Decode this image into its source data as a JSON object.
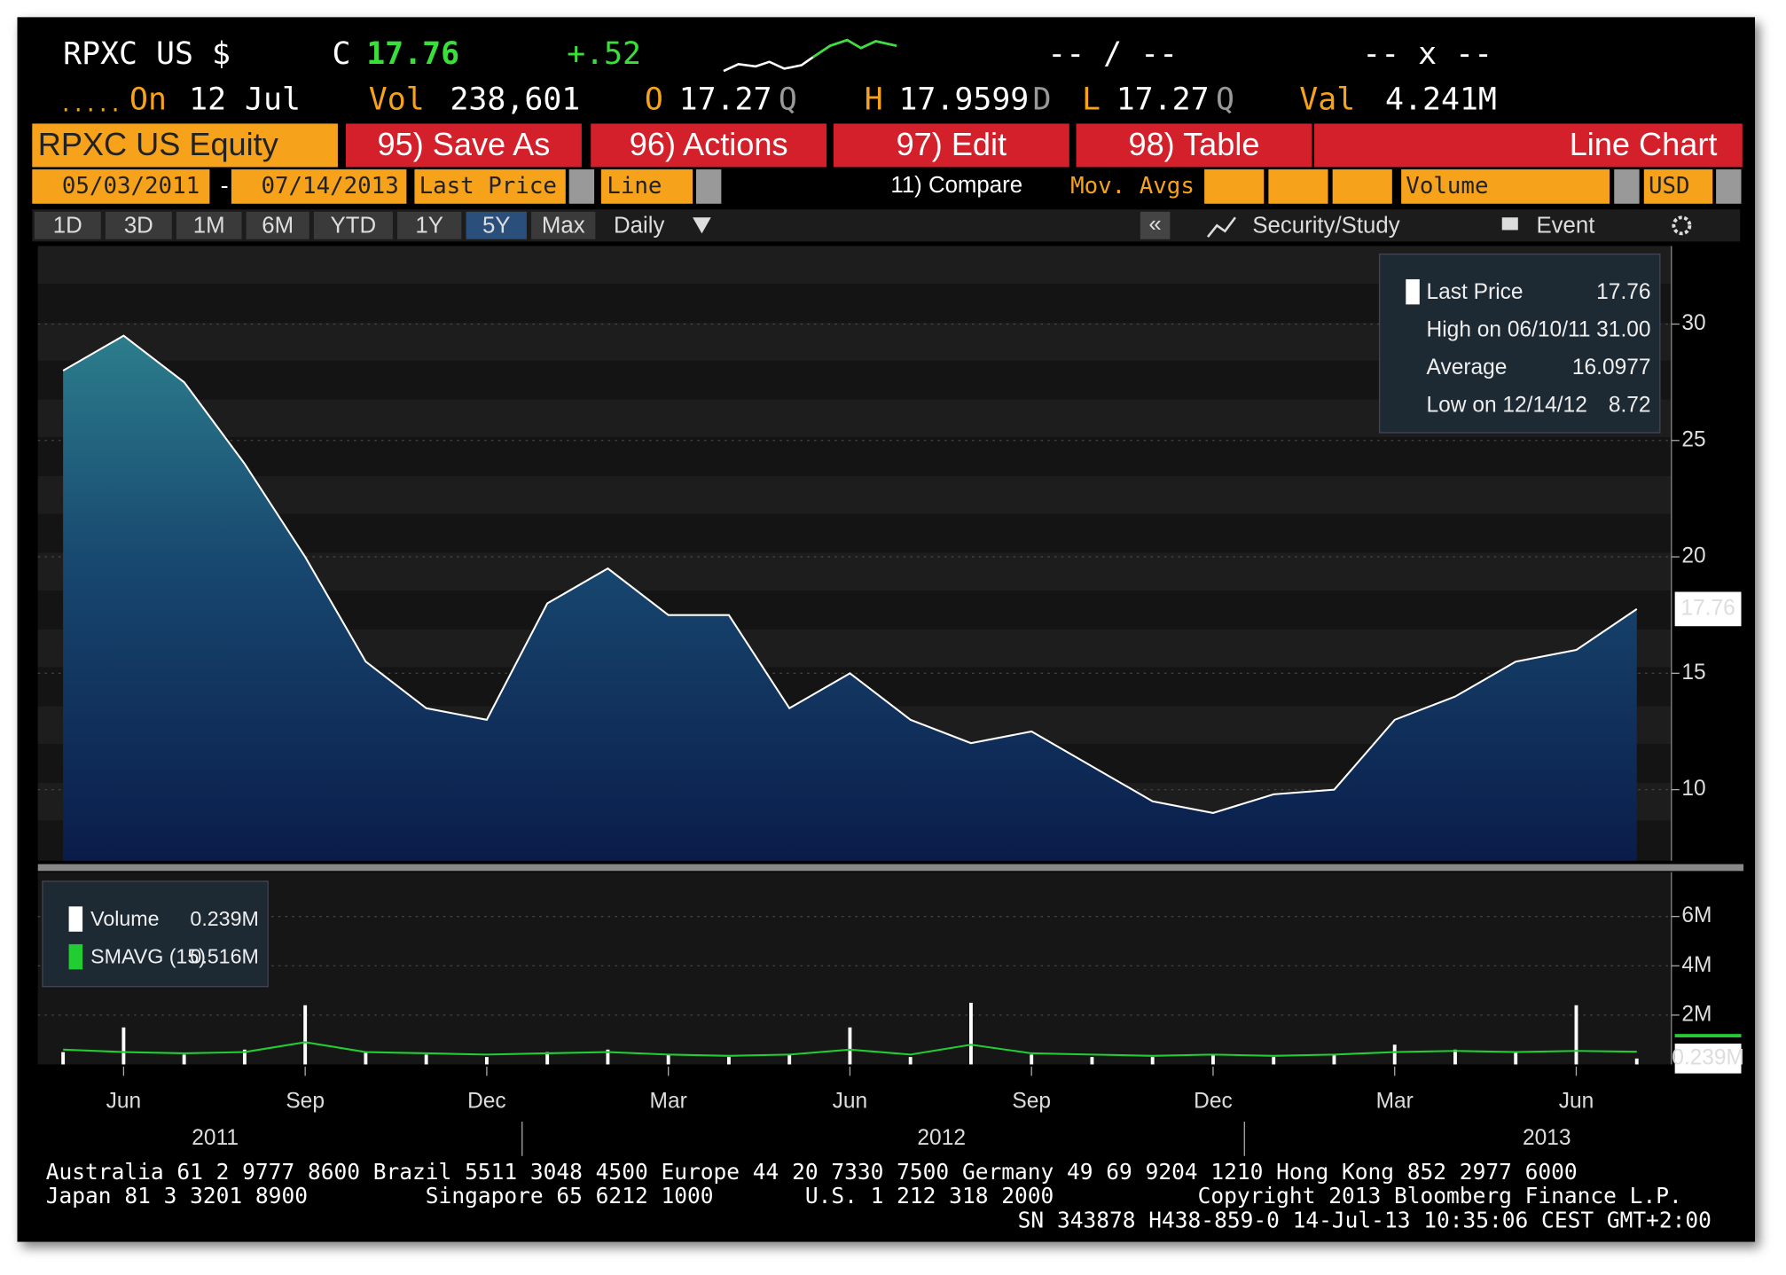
{
  "header": {
    "ticker": "RPXC US $",
    "c_label": "C",
    "last": "17.76",
    "change": "+.52",
    "bid_ask": "-- / --",
    "size": "-- x --",
    "dots": ".....",
    "on_label": "On",
    "on_date": "12 Jul",
    "vol_label": "Vol",
    "vol": "238,601",
    "o_label": "O",
    "open": "17.27",
    "open_src": "Q",
    "h_label": "H",
    "high": "17.9599",
    "high_src": "D",
    "l_label": "L",
    "low": "17.27",
    "low_src": "Q",
    "val_label": "Val",
    "val": "4.241M"
  },
  "toolbar": {
    "security": "RPXC US Equity",
    "buttons": [
      "95) Save As",
      "96) Actions",
      "97) Edit",
      "98) Table"
    ],
    "view": "Line Chart"
  },
  "settings": {
    "start": "05/03/2011",
    "dash": "-",
    "end": "07/14/2013",
    "field": "Last Price",
    "style": "Line",
    "compare": "11) Compare",
    "mov_avgs": "Mov. Avgs",
    "lower": "Volume",
    "currency": "USD"
  },
  "tabs": {
    "periods": [
      "1D",
      "3D",
      "1M",
      "6M",
      "YTD",
      "1Y",
      "5Y",
      "Max"
    ],
    "active": "5Y",
    "frequency": "Daily",
    "collapse": "«",
    "study": "Security/Study",
    "event": "Event"
  },
  "footer": [
    "Australia 61 2 9777 8600 Brazil 5511 3048 4500 Europe 44 20 7330 7500 Germany 49 69 9204 1210 Hong Kong 852 2977 6000",
    "Japan 81 3 3201 8900         Singapore 65 6212 1000       U.S. 1 212 318 2000           Copyright 2013 Bloomberg Finance L.P.",
    "SN 343878 H438-859-0 14-Jul-13 10:35:06 CEST GMT+2:00"
  ],
  "chart_data": [
    {
      "type": "area",
      "x": [
        "2011-05",
        "2011-06",
        "2011-07",
        "2011-08",
        "2011-09",
        "2011-10",
        "2011-11",
        "2011-12",
        "2012-01",
        "2012-02",
        "2012-03",
        "2012-04",
        "2012-05",
        "2012-06",
        "2012-07",
        "2012-08",
        "2012-09",
        "2012-10",
        "2012-11",
        "2012-12",
        "2013-01",
        "2013-02",
        "2013-03",
        "2013-04",
        "2013-05",
        "2013-06",
        "2013-07"
      ],
      "series": [
        {
          "name": "Last Price",
          "color": "#ffffff",
          "values": [
            28,
            29.5,
            27.5,
            24,
            20,
            15.5,
            13.5,
            13,
            18,
            19.5,
            17.5,
            17.5,
            13.5,
            15,
            13,
            12,
            12.5,
            11,
            9.5,
            9,
            9.8,
            10,
            13,
            14,
            15.5,
            16,
            17.76
          ]
        }
      ],
      "stats": [
        {
          "label": "Last Price",
          "value": "17.76"
        },
        {
          "label": "High on 06/10/11",
          "value": "31.00"
        },
        {
          "label": "Average",
          "value": "16.0977"
        },
        {
          "label": "Low on 12/14/12",
          "value": "8.72"
        }
      ],
      "ylim": [
        6.95,
        33.35
      ],
      "yticks": [
        10,
        15,
        20,
        25,
        30
      ],
      "xtick_labels": [
        {
          "value": "2011-06",
          "label": "Jun"
        },
        {
          "value": "2011-09",
          "label": "Sep"
        },
        {
          "value": "2011-12",
          "label": "Dec"
        },
        {
          "value": "2012-03",
          "label": "Mar"
        },
        {
          "value": "2012-06",
          "label": "Jun"
        },
        {
          "value": "2012-09",
          "label": "Sep"
        },
        {
          "value": "2012-12",
          "label": "Dec"
        },
        {
          "value": "2013-03",
          "label": "Mar"
        },
        {
          "value": "2013-06",
          "label": "Jun"
        }
      ],
      "year_labels": [
        {
          "value": "2011-06",
          "label": "2011"
        },
        {
          "value": "2012-06",
          "label": "2012"
        },
        {
          "value": "2013-04",
          "label": "2013"
        }
      ],
      "grid": true
    },
    {
      "type": "bar",
      "x": [
        "2011-05",
        "2011-06",
        "2011-07",
        "2011-08",
        "2011-09",
        "2011-10",
        "2011-11",
        "2011-12",
        "2012-01",
        "2012-02",
        "2012-03",
        "2012-04",
        "2012-05",
        "2012-06",
        "2012-07",
        "2012-08",
        "2012-09",
        "2012-10",
        "2012-11",
        "2012-12",
        "2013-01",
        "2013-02",
        "2013-03",
        "2013-04",
        "2013-05",
        "2013-06",
        "2013-07"
      ],
      "series": [
        {
          "name": "Volume",
          "color": "#ffffff",
          "legend_value": "0.239M",
          "values": [
            0.5,
            1.5,
            0.4,
            0.6,
            2.4,
            0.5,
            0.4,
            0.3,
            0.5,
            0.6,
            0.4,
            0.3,
            0.4,
            1.5,
            0.3,
            2.5,
            0.4,
            0.3,
            0.3,
            0.4,
            0.3,
            0.4,
            0.8,
            0.6,
            0.5,
            2.4,
            0.239
          ]
        },
        {
          "name": "SMAVG (15)",
          "color": "#22cc33",
          "legend_value": "0.516M",
          "values": [
            0.6,
            0.5,
            0.45,
            0.5,
            0.9,
            0.5,
            0.45,
            0.4,
            0.45,
            0.5,
            0.4,
            0.35,
            0.4,
            0.6,
            0.4,
            0.8,
            0.45,
            0.4,
            0.35,
            0.4,
            0.35,
            0.4,
            0.5,
            0.55,
            0.5,
            0.55,
            0.516
          ]
        }
      ],
      "ylim": [
        0,
        7.8
      ],
      "yticks": [
        {
          "value": 2,
          "label": "2M"
        },
        {
          "value": 4,
          "label": "4M"
        },
        {
          "value": 6,
          "label": "6M"
        }
      ],
      "grid": true
    }
  ]
}
